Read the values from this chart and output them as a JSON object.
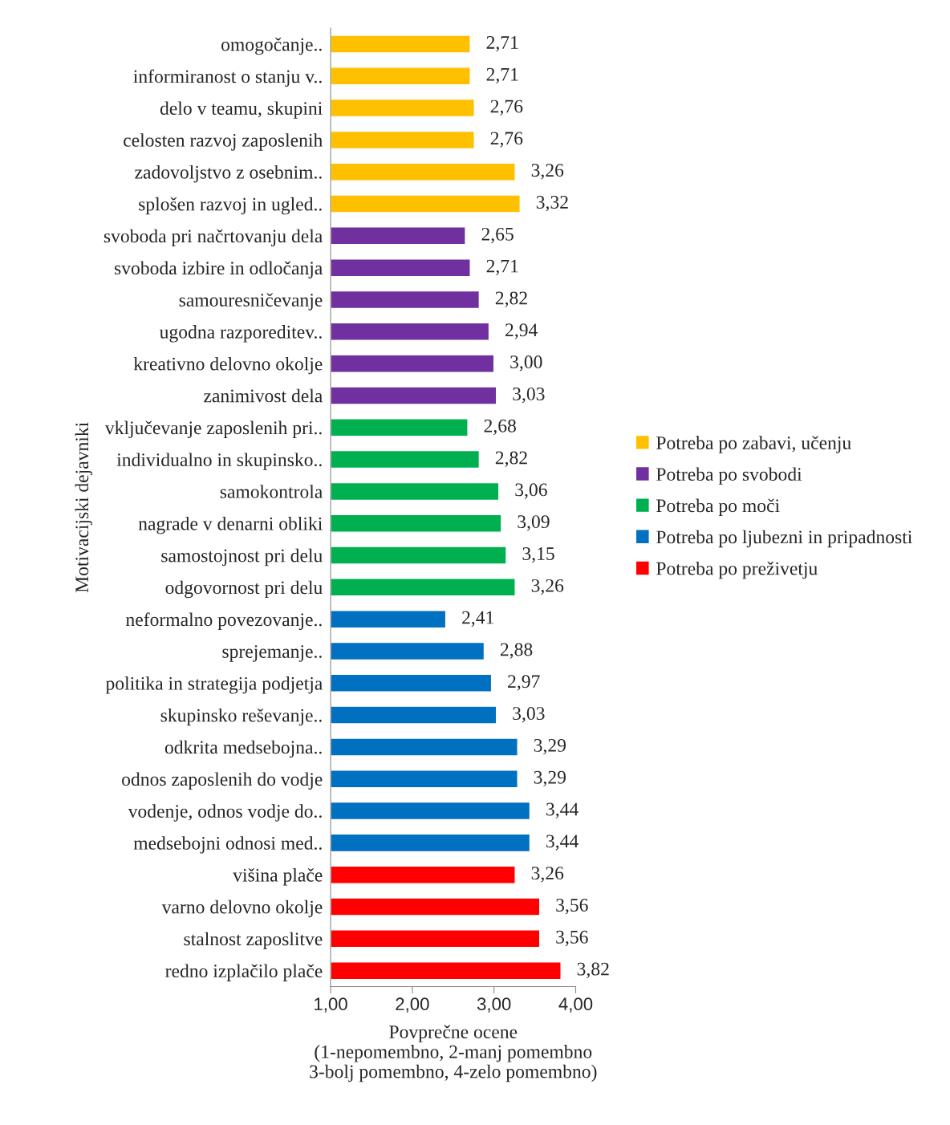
{
  "chart_data": {
    "type": "bar",
    "orientation": "horizontal",
    "xlabel": "Povprečne ocene\n(1-nepomembno, 2-manj pomembno\n3-bolj pomembno, 4-zelo pomembno)",
    "ylabel": "Motivacijski dejavniki",
    "categories": [
      "omogočanje..",
      "informiranost o stanju v..",
      "delo v teamu, skupini",
      "celosten razvoj zaposlenih",
      "zadovoljstvo z osebnim..",
      "splošen razvoj in ugled..",
      "svoboda pri načrtovanju dela",
      "svoboda izbire in odločanja",
      "samouresničevanje",
      "ugodna razporeditev..",
      "kreativno delovno okolje",
      "zanimivost dela",
      "vključevanje zaposlenih pri..",
      "individualno in skupinsko..",
      "samokontrola",
      "nagrade v denarni obliki",
      "samostojnost pri delu",
      "odgovornost pri delu",
      "neformalno povezovanje..",
      "sprejemanje..",
      "politika in strategija podjetja",
      "skupinsko reševanje..",
      "odkrita medsebojna..",
      "odnos zaposlenih do vodje",
      "vodenje, odnos vodje do..",
      "medsebojni odnosi med..",
      "višina plače",
      "varno delovno okolje",
      "stalnost zaposlitve",
      "redno izplačilo plače"
    ],
    "series": [
      {
        "name": "Potreba po zabavi, učenju",
        "color": "#ffc000",
        "values": [
          2.71,
          2.71,
          2.76,
          2.76,
          3.26,
          3.32,
          null,
          null,
          null,
          null,
          null,
          null,
          null,
          null,
          null,
          null,
          null,
          null,
          null,
          null,
          null,
          null,
          null,
          null,
          null,
          null,
          null,
          null,
          null,
          null
        ],
        "value_labels": [
          "2,71",
          "2,71",
          "2,76",
          "2,76",
          "3,26",
          "3,32",
          null,
          null,
          null,
          null,
          null,
          null,
          null,
          null,
          null,
          null,
          null,
          null,
          null,
          null,
          null,
          null,
          null,
          null,
          null,
          null,
          null,
          null,
          null,
          null
        ]
      },
      {
        "name": "Potreba po svobodi",
        "color": "#7030a0",
        "values": [
          null,
          null,
          null,
          null,
          null,
          null,
          2.65,
          2.71,
          2.82,
          2.94,
          3.0,
          3.03,
          null,
          null,
          null,
          null,
          null,
          null,
          null,
          null,
          null,
          null,
          null,
          null,
          null,
          null,
          null,
          null,
          null,
          null
        ],
        "value_labels": [
          null,
          null,
          null,
          null,
          null,
          null,
          "2,65",
          "2,71",
          "2,82",
          "2,94",
          "3,00",
          "3,03",
          null,
          null,
          null,
          null,
          null,
          null,
          null,
          null,
          null,
          null,
          null,
          null,
          null,
          null,
          null,
          null,
          null,
          null
        ]
      },
      {
        "name": "Potreba po moči",
        "color": "#00b050",
        "values": [
          null,
          null,
          null,
          null,
          null,
          null,
          null,
          null,
          null,
          null,
          null,
          null,
          2.68,
          2.82,
          3.06,
          3.09,
          3.15,
          3.26,
          null,
          null,
          null,
          null,
          null,
          null,
          null,
          null,
          null,
          null,
          null,
          null
        ],
        "value_labels": [
          null,
          null,
          null,
          null,
          null,
          null,
          null,
          null,
          null,
          null,
          null,
          null,
          "2,68",
          "2,82",
          "3,06",
          "3,09",
          "3,15",
          "3,26",
          null,
          null,
          null,
          null,
          null,
          null,
          null,
          null,
          null,
          null,
          null,
          null
        ]
      },
      {
        "name": "Potreba po ljubezni in pripadnosti",
        "color": "#0070c0",
        "values": [
          null,
          null,
          null,
          null,
          null,
          null,
          null,
          null,
          null,
          null,
          null,
          null,
          null,
          null,
          null,
          null,
          null,
          null,
          2.41,
          2.88,
          2.97,
          3.03,
          3.29,
          3.29,
          3.44,
          3.44,
          null,
          null,
          null,
          null
        ],
        "value_labels": [
          null,
          null,
          null,
          null,
          null,
          null,
          null,
          null,
          null,
          null,
          null,
          null,
          null,
          null,
          null,
          null,
          null,
          null,
          "2,41",
          "2,88",
          "2,97",
          "3,03",
          "3,29",
          "3,29",
          "3,44",
          "3,44",
          null,
          null,
          null,
          null
        ]
      },
      {
        "name": "Potreba po preživetju",
        "color": "#ff0000",
        "values": [
          null,
          null,
          null,
          null,
          null,
          null,
          null,
          null,
          null,
          null,
          null,
          null,
          null,
          null,
          null,
          null,
          null,
          null,
          null,
          null,
          null,
          null,
          null,
          null,
          null,
          null,
          3.26,
          3.56,
          3.56,
          3.82
        ],
        "value_labels": [
          null,
          null,
          null,
          null,
          null,
          null,
          null,
          null,
          null,
          null,
          null,
          null,
          null,
          null,
          null,
          null,
          null,
          null,
          null,
          null,
          null,
          null,
          null,
          null,
          null,
          null,
          "3,26",
          "3,56",
          "3,56",
          "3,82"
        ]
      }
    ],
    "xlim": [
      1,
      4
    ],
    "xticks": [
      {
        "value": 1,
        "label": "1,00"
      },
      {
        "value": 2,
        "label": "2,00"
      },
      {
        "value": 3,
        "label": "3,00"
      },
      {
        "value": 4,
        "label": "4,00"
      }
    ],
    "grid": false,
    "legend": "right"
  }
}
